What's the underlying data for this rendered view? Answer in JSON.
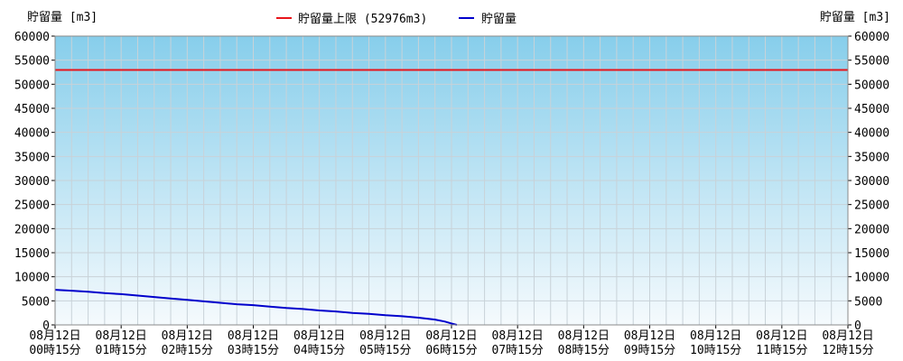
{
  "chart_data": {
    "type": "line",
    "y_axis_label_left": "貯留量 [m3]",
    "y_axis_label_right": "貯留量 [m3]",
    "ylim": [
      0,
      60000
    ],
    "y_ticks": [
      0,
      5000,
      10000,
      15000,
      20000,
      25000,
      30000,
      35000,
      40000,
      45000,
      50000,
      55000,
      60000
    ],
    "grid": true,
    "legend_position": "top-center",
    "x_ticks": [
      {
        "line1": "08月12日",
        "line2": "00時15分"
      },
      {
        "line1": "08月12日",
        "line2": "01時15分"
      },
      {
        "line1": "08月12日",
        "line2": "02時15分"
      },
      {
        "line1": "08月12日",
        "line2": "03時15分"
      },
      {
        "line1": "08月12日",
        "line2": "04時15分"
      },
      {
        "line1": "08月12日",
        "line2": "05時15分"
      },
      {
        "line1": "08月12日",
        "line2": "06時15分"
      },
      {
        "line1": "08月12日",
        "line2": "07時15分"
      },
      {
        "line1": "08月12日",
        "line2": "08時15分"
      },
      {
        "line1": "08月12日",
        "line2": "09時15分"
      },
      {
        "line1": "08月12日",
        "line2": "10時15分"
      },
      {
        "line1": "08月12日",
        "line2": "11時15分"
      },
      {
        "line1": "08月12日",
        "line2": "12時15分"
      }
    ],
    "x_label_interval_hours": 1,
    "xlim_hours": [
      0,
      12
    ],
    "series": [
      {
        "name": "貯留量上限 (52976m3)",
        "color": "#e8141a",
        "kind": "horizontal",
        "value": 52976
      },
      {
        "name": "貯留量",
        "color": "#0000cc",
        "kind": "line",
        "x_hours": [
          0,
          0.25,
          0.5,
          0.75,
          1,
          1.25,
          1.5,
          1.75,
          2,
          2.25,
          2.5,
          2.75,
          3,
          3.25,
          3.5,
          3.75,
          4,
          4.25,
          4.5,
          4.75,
          5,
          5.25,
          5.5,
          5.75,
          5.9,
          6.0,
          6.08
        ],
        "values": [
          7300,
          7100,
          6900,
          6600,
          6400,
          6100,
          5800,
          5500,
          5200,
          4900,
          4600,
          4300,
          4100,
          3800,
          3500,
          3300,
          3000,
          2800,
          2500,
          2300,
          2000,
          1800,
          1500,
          1100,
          700,
          300,
          0
        ]
      }
    ],
    "background_gradient": {
      "top": "#87ceeb",
      "bottom": "#f5fafd"
    },
    "grid_color": "#c8d2d8"
  }
}
